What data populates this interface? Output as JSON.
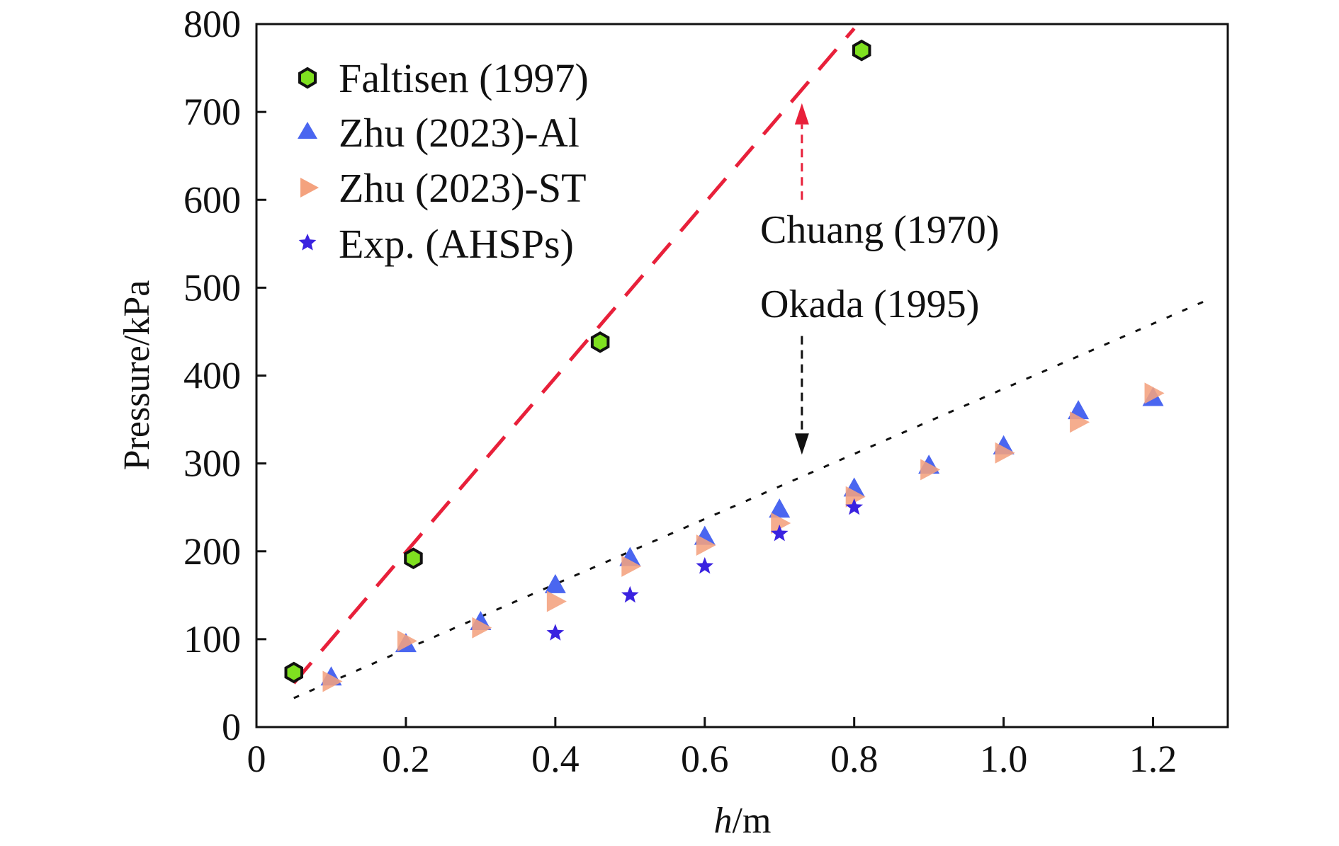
{
  "chart_data": {
    "type": "scatter",
    "title": "",
    "xlabel_italic": "h",
    "xlabel_unit": "/m",
    "ylabel": "Pressure/kPa",
    "xlim": [
      0,
      1.3
    ],
    "ylim": [
      0,
      800
    ],
    "xticks": [
      0,
      0.2,
      0.4,
      0.6,
      0.8,
      1.0,
      1.2
    ],
    "xtick_labels": [
      "0",
      "0.2",
      "0.4",
      "0.6",
      "0.8",
      "1.0",
      "1.2"
    ],
    "yticks": [
      0,
      100,
      200,
      300,
      400,
      500,
      600,
      700,
      800
    ],
    "ytick_labels": [
      "0",
      "100",
      "200",
      "300",
      "400",
      "500",
      "600",
      "700",
      "800"
    ],
    "grid": false,
    "legend_position": "top-left",
    "series": [
      {
        "name": "Faltisen (1997)",
        "marker": "hexagon",
        "color": "#7fe020",
        "edge_color": "#111111",
        "x": [
          0.05,
          0.21,
          0.46,
          0.81
        ],
        "y": [
          62,
          192,
          438,
          770
        ]
      },
      {
        "name": "Zhu (2023)-Al",
        "marker": "triangle-up",
        "color": "#4a66f0",
        "x": [
          0.1,
          0.2,
          0.3,
          0.4,
          0.5,
          0.6,
          0.7,
          0.8,
          0.9,
          1.0,
          1.1,
          1.2
        ],
        "y": [
          57,
          95,
          120,
          162,
          193,
          217,
          248,
          272,
          298,
          320,
          360,
          375
        ]
      },
      {
        "name": "Zhu (2023)-ST",
        "marker": "triangle-right",
        "color": "#f4a27e",
        "x": [
          0.1,
          0.2,
          0.3,
          0.4,
          0.5,
          0.6,
          0.7,
          0.8,
          0.9,
          1.0,
          1.1,
          1.2
        ],
        "y": [
          52,
          98,
          113,
          143,
          183,
          207,
          232,
          262,
          293,
          312,
          347,
          380
        ]
      },
      {
        "name": "Exp. (AHSPs)",
        "marker": "star",
        "color": "#3a22e0",
        "x": [
          0.4,
          0.5,
          0.6,
          0.7,
          0.8
        ],
        "y": [
          107,
          150,
          183,
          220,
          250
        ]
      }
    ],
    "lines": [
      {
        "label": "Chuang (1970)",
        "style": "dashed",
        "color": "#e8203a",
        "x": [
          0.05,
          0.8
        ],
        "y": [
          50,
          795
        ]
      },
      {
        "label": "Okada (1995)",
        "style": "dotted",
        "color": "#111111",
        "x": [
          0.05,
          1.27
        ],
        "y": [
          33,
          485
        ]
      }
    ],
    "annotations": [
      {
        "text": "Chuang (1970)",
        "arrow_color": "#e8203a",
        "arrow_style": "dashed",
        "arrow_to": [
          0.73,
          710
        ],
        "arrow_from": [
          0.73,
          600
        ]
      },
      {
        "text": "Okada (1995)",
        "arrow_color": "#111111",
        "arrow_style": "dashed",
        "arrow_to": [
          0.73,
          310
        ],
        "arrow_from": [
          0.73,
          445
        ]
      }
    ]
  }
}
